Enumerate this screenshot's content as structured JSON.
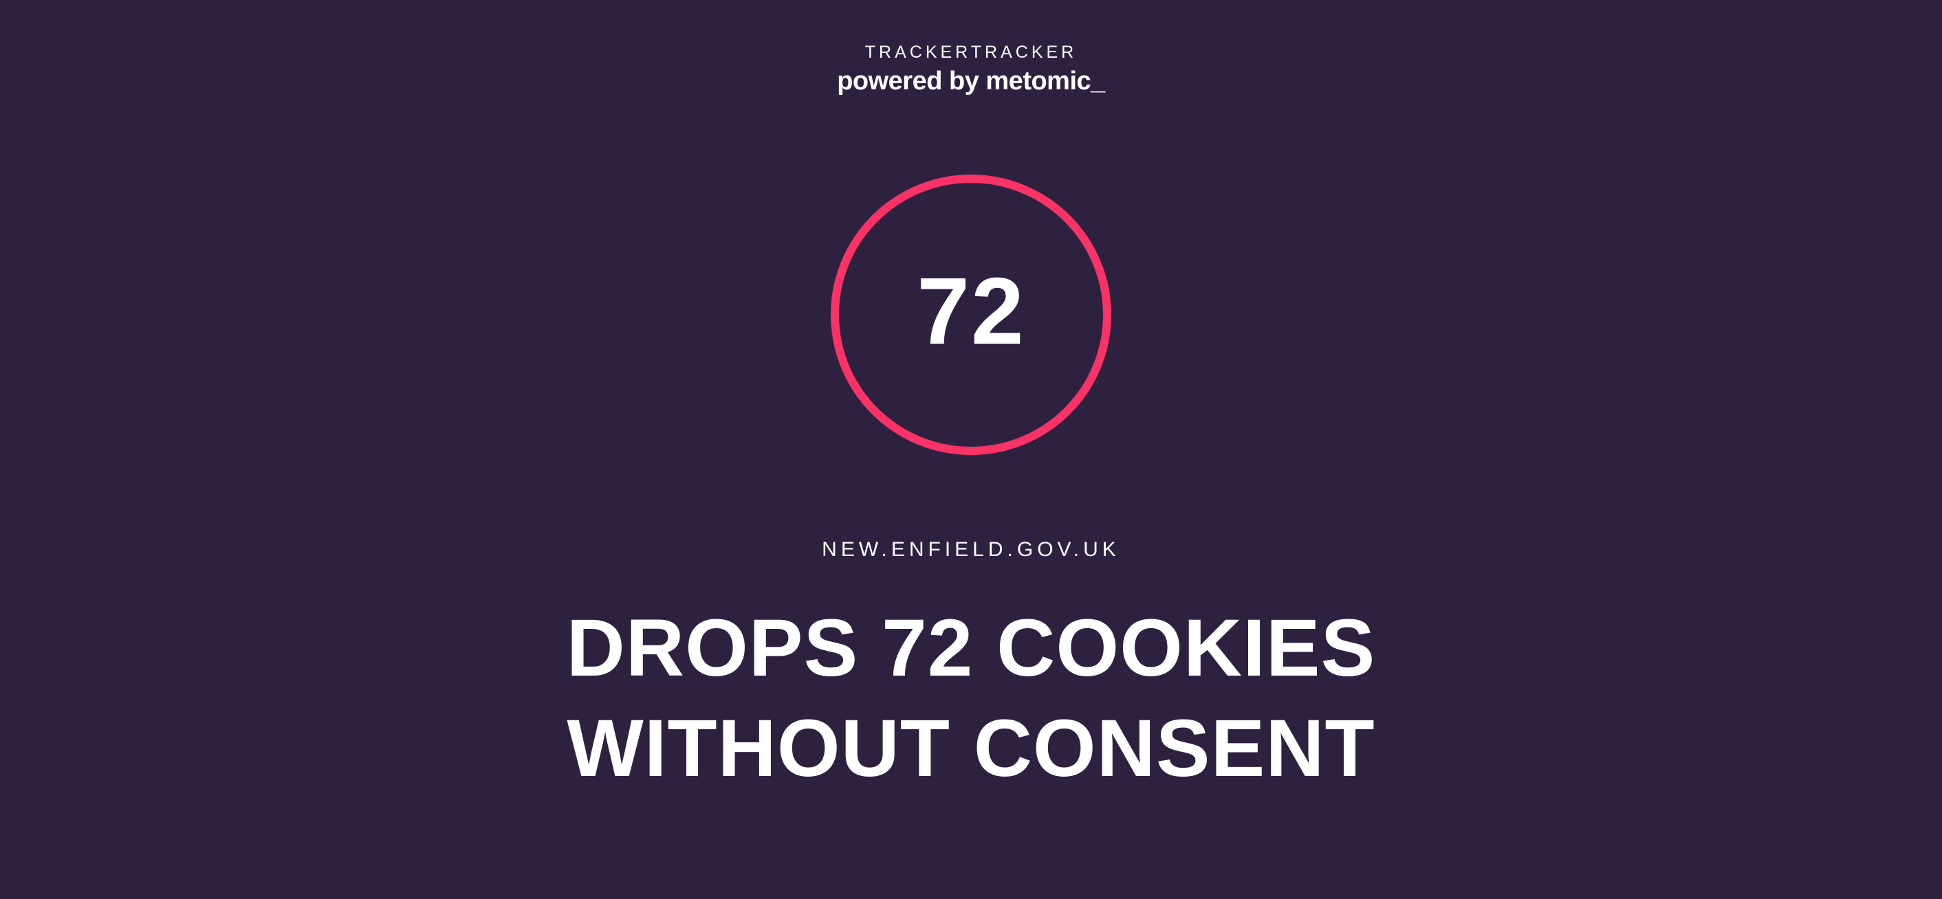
{
  "brand": {
    "name": "TRACKERTRACKER",
    "powered_by": "powered by metomic_"
  },
  "score": {
    "value": "72",
    "ring_color": "#fa3366"
  },
  "site": {
    "domain": "NEW.ENFIELD.GOV.UK"
  },
  "headline": {
    "line1": "DROPS 72 COOKIES",
    "line2": "WITHOUT CONSENT"
  },
  "colors": {
    "background": "#2e2140",
    "accent": "#fa3366",
    "text": "#ffffff"
  }
}
